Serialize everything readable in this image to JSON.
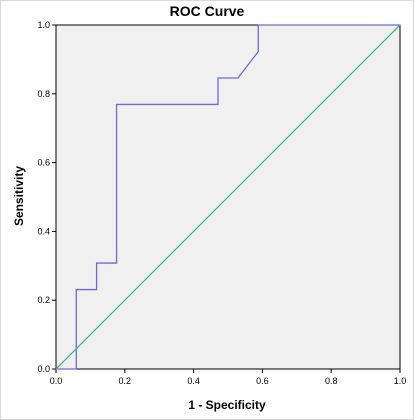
{
  "chart_data": {
    "type": "line",
    "title": "ROC Curve",
    "xlabel": "1 - Specificity",
    "ylabel": "Sensitivity",
    "xlim": [
      0.0,
      1.0
    ],
    "ylim": [
      0.0,
      1.0
    ],
    "xticks": [
      "0.0",
      "0.2",
      "0.4",
      "0.6",
      "0.8",
      "1.0"
    ],
    "yticks": [
      "0.0",
      "0.2",
      "0.4",
      "0.6",
      "0.8",
      "1.0"
    ],
    "grid": false,
    "series": [
      {
        "color": "#6b6bd2",
        "x": [
          0.0,
          0.059,
          0.059,
          0.118,
          0.118,
          0.176,
          0.176,
          0.471,
          0.471,
          0.529,
          0.529,
          0.588,
          0.588,
          1.0
        ],
        "y": [
          0.0,
          0.0,
          0.231,
          0.231,
          0.308,
          0.308,
          0.769,
          0.769,
          0.846,
          0.846,
          0.846,
          0.923,
          1.0,
          1.0
        ]
      },
      {
        "color": "#3cb88a",
        "x": [
          0.0,
          1.0
        ],
        "y": [
          0.0,
          1.0
        ]
      }
    ],
    "plot_background": "#f0f0f0"
  }
}
